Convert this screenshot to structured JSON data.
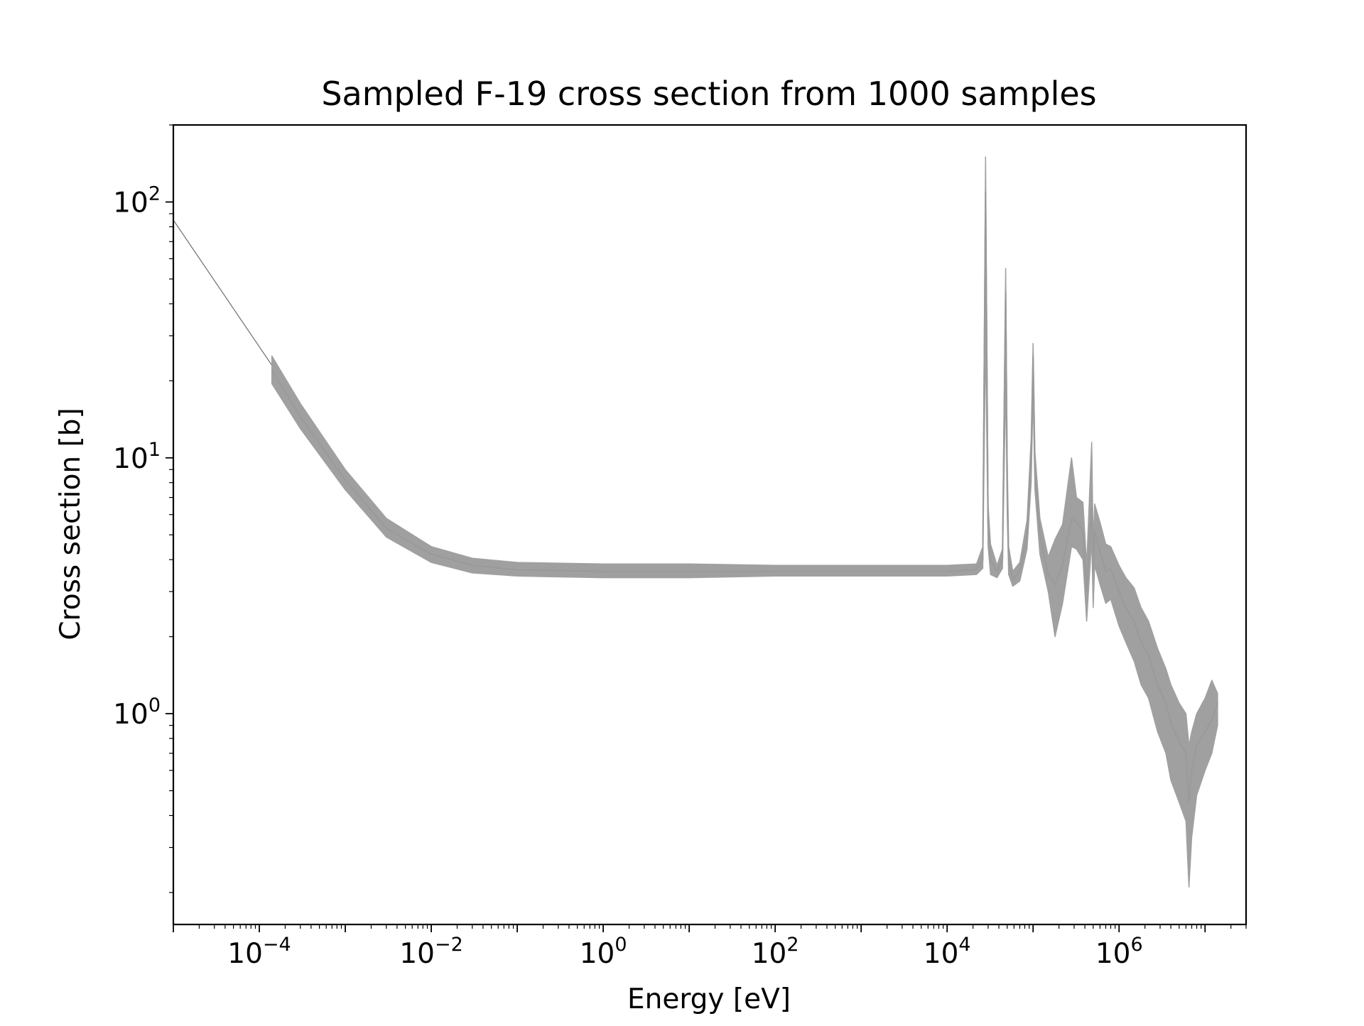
{
  "chart_data": {
    "type": "line",
    "title": "Sampled F-19 cross section from 1000 samples",
    "xlabel": "Energy [eV]",
    "ylabel": "Cross section [b]",
    "x_scale": "log",
    "y_scale": "log",
    "xlim": [
      1e-05,
      30000000.0
    ],
    "ylim": [
      0.15,
      200
    ],
    "grid": false,
    "legend": "none",
    "series_color": "#a0a0a0",
    "x_ticks": [
      {
        "base": "10",
        "exp": "−4",
        "value": 0.0001
      },
      {
        "base": "10",
        "exp": "−2",
        "value": 0.01
      },
      {
        "base": "10",
        "exp": "0",
        "value": 1
      },
      {
        "base": "10",
        "exp": "2",
        "value": 100
      },
      {
        "base": "10",
        "exp": "4",
        "value": 10000
      },
      {
        "base": "10",
        "exp": "6",
        "value": 1000000
      }
    ],
    "y_ticks": [
      {
        "base": "10",
        "exp": "0",
        "value": 1
      },
      {
        "base": "10",
        "exp": "1",
        "value": 10
      },
      {
        "base": "10",
        "exp": "2",
        "value": 100
      }
    ],
    "tail": {
      "x": [
        1e-05,
        0.00014
      ],
      "y": [
        85,
        23
      ]
    },
    "band": {
      "x": [
        0.00014,
        0.0003,
        0.001,
        0.003,
        0.01,
        0.03,
        0.1,
        1,
        10,
        100,
        1000,
        10000,
        22000,
        26000,
        28000,
        30000,
        32000,
        38000,
        44000,
        48000,
        50000,
        52000,
        58000,
        70000,
        85000,
        95000,
        100000,
        105000,
        120000,
        150000,
        180000,
        220000,
        280000,
        320000,
        380000,
        420000,
        480000,
        500000,
        520000,
        600000,
        700000,
        800000,
        1000000,
        1200000,
        1500000,
        1800000,
        2200000,
        2800000,
        3500000,
        4000000,
        5000000,
        6000000,
        6500000,
        7000000,
        8000000,
        10000000,
        12000000,
        14000000
      ],
      "mean": [
        22,
        14.5,
        8.2,
        5.3,
        4.2,
        3.8,
        3.65,
        3.6,
        3.6,
        3.6,
        3.6,
        3.6,
        3.65,
        4.0,
        110,
        5.5,
        4.0,
        3.6,
        4.0,
        45,
        8,
        4.0,
        3.35,
        3.6,
        5.0,
        10,
        25,
        9,
        5.0,
        3.5,
        3.2,
        3.8,
        5.8,
        5.6,
        5.2,
        3.0,
        6.5,
        3.6,
        5.2,
        4.3,
        3.6,
        3.7,
        3.0,
        2.6,
        2.3,
        1.9,
        1.7,
        1.3,
        1.1,
        0.92,
        0.78,
        0.7,
        0.45,
        0.6,
        0.75,
        0.85,
        0.95,
        1.1
      ],
      "low": [
        19.5,
        13.0,
        7.5,
        4.9,
        3.9,
        3.55,
        3.45,
        3.4,
        3.4,
        3.45,
        3.45,
        3.45,
        3.5,
        3.7,
        30,
        4.5,
        3.5,
        3.4,
        3.7,
        20,
        6,
        3.5,
        3.15,
        3.3,
        4.4,
        8,
        18,
        7.5,
        4.2,
        3.0,
        2.0,
        2.7,
        4.5,
        4.4,
        4.0,
        2.3,
        4.8,
        2.6,
        3.8,
        3.2,
        2.7,
        2.8,
        2.2,
        1.9,
        1.6,
        1.3,
        1.15,
        0.85,
        0.7,
        0.55,
        0.45,
        0.38,
        0.21,
        0.33,
        0.48,
        0.6,
        0.7,
        0.9
      ],
      "high": [
        25,
        16.3,
        9.0,
        5.8,
        4.5,
        4.05,
        3.9,
        3.85,
        3.85,
        3.8,
        3.8,
        3.8,
        3.85,
        4.5,
        150,
        6.5,
        4.6,
        3.8,
        4.4,
        55,
        10,
        4.5,
        3.6,
        3.9,
        5.7,
        12,
        28,
        10.5,
        5.8,
        4.1,
        4.8,
        5.5,
        10,
        7.0,
        6.7,
        3.8,
        11.5,
        4.6,
        6.6,
        5.6,
        4.6,
        4.5,
        3.8,
        3.4,
        3.1,
        2.6,
        2.3,
        1.8,
        1.5,
        1.3,
        1.1,
        1.0,
        0.75,
        0.85,
        1.0,
        1.15,
        1.35,
        1.2
      ]
    }
  }
}
